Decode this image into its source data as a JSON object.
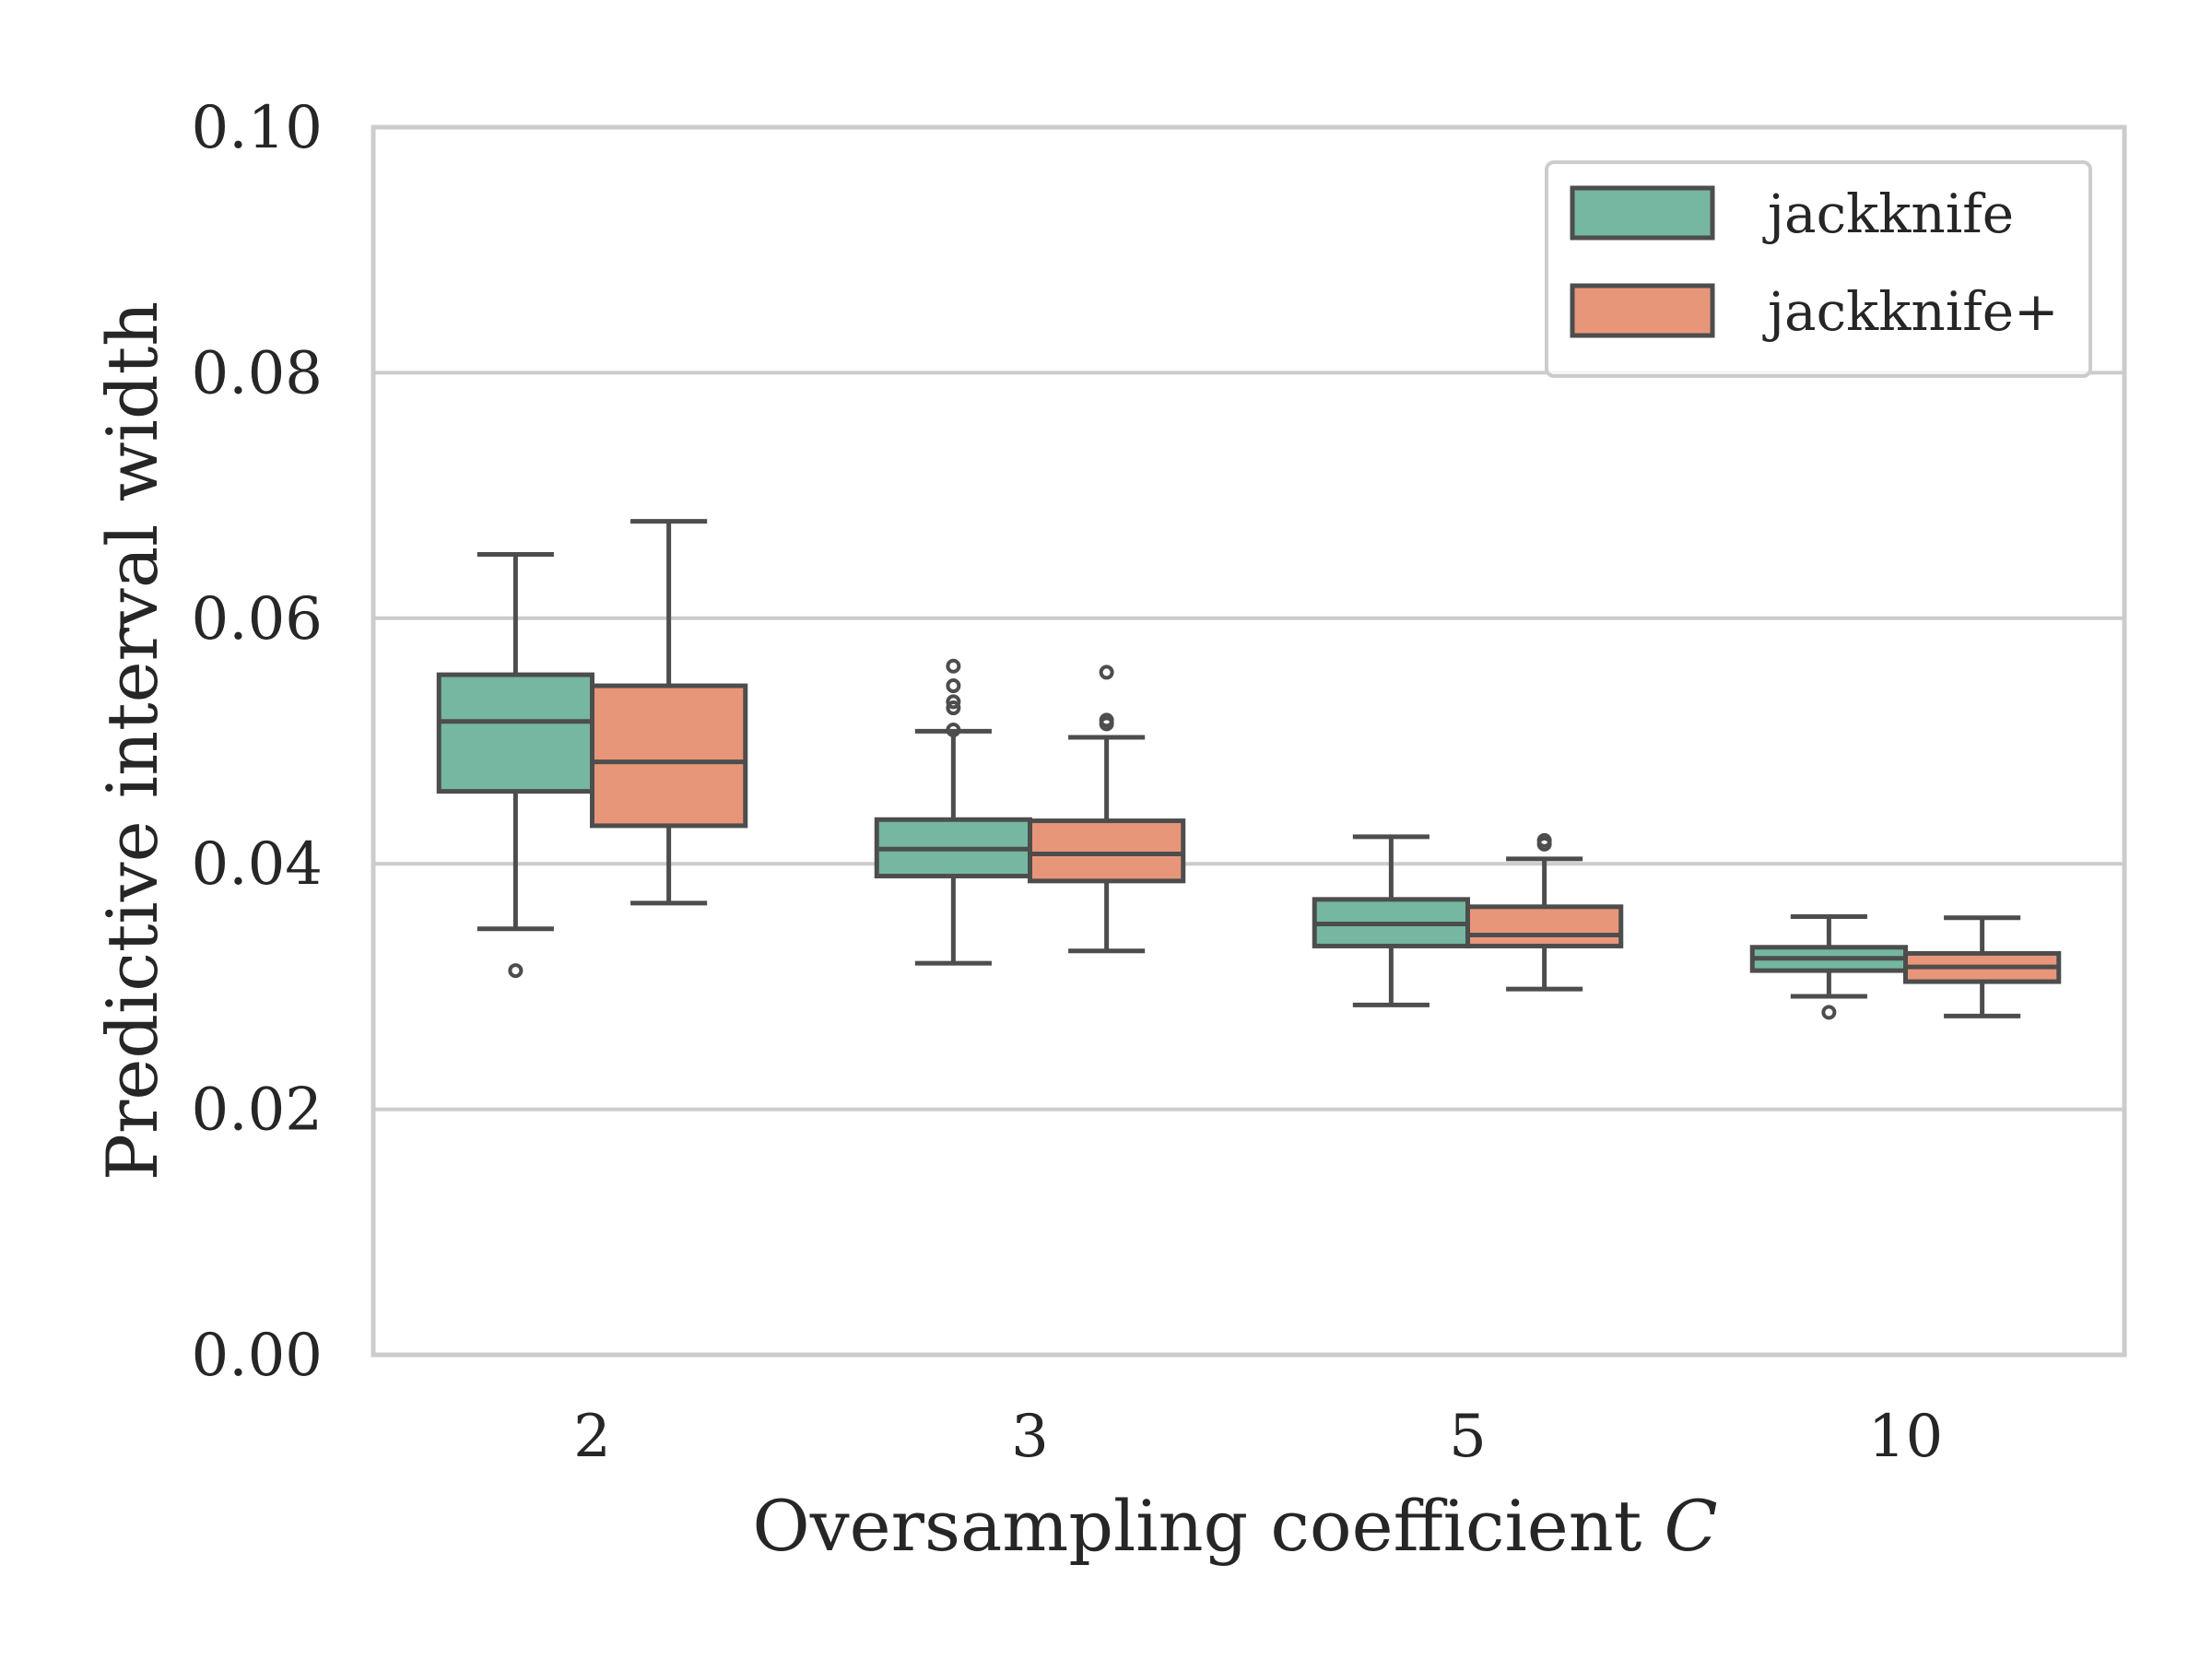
{
  "chart_data": {
    "type": "box",
    "title": "",
    "xlabel": "Oversampling coefficient",
    "xlabel_var": "C",
    "ylabel": "Predictive interval width",
    "ylim": [
      0.0,
      0.1
    ],
    "yticks": [
      "0.00",
      "0.02",
      "0.04",
      "0.06",
      "0.08",
      "0.10"
    ],
    "categories": [
      "2",
      "3",
      "5",
      "10"
    ],
    "grid": "horizontal",
    "legend_position": "top-right",
    "series": [
      {
        "name": "jackknife",
        "color": "#75b7a0",
        "boxes": [
          {
            "whisker_low": 0.0347,
            "q1": 0.0459,
            "median": 0.0516,
            "q3": 0.0554,
            "whisker_high": 0.0652,
            "outliers": [
              0.0313
            ]
          },
          {
            "whisker_low": 0.0319,
            "q1": 0.039,
            "median": 0.0412,
            "q3": 0.0436,
            "whisker_high": 0.0508,
            "outliers": [
              0.0509,
              0.0527,
              0.0532,
              0.0545,
              0.0561
            ]
          },
          {
            "whisker_low": 0.0285,
            "q1": 0.0333,
            "median": 0.0351,
            "q3": 0.0371,
            "whisker_high": 0.0422,
            "outliers": []
          },
          {
            "whisker_low": 0.0292,
            "q1": 0.0313,
            "median": 0.0323,
            "q3": 0.0332,
            "whisker_high": 0.0357,
            "outliers": [
              0.0279
            ]
          }
        ]
      },
      {
        "name": "jackknife+",
        "color": "#e8967a",
        "boxes": [
          {
            "whisker_low": 0.0368,
            "q1": 0.0431,
            "median": 0.0483,
            "q3": 0.0545,
            "whisker_high": 0.0679,
            "outliers": []
          },
          {
            "whisker_low": 0.0329,
            "q1": 0.0386,
            "median": 0.0408,
            "q3": 0.0435,
            "whisker_high": 0.0503,
            "outliers": [
              0.0514,
              0.0517,
              0.0556
            ]
          },
          {
            "whisker_low": 0.0298,
            "q1": 0.0333,
            "median": 0.0342,
            "q3": 0.0365,
            "whisker_high": 0.0404,
            "outliers": [
              0.0416,
              0.0419
            ]
          },
          {
            "whisker_low": 0.0276,
            "q1": 0.0304,
            "median": 0.0316,
            "q3": 0.0327,
            "whisker_high": 0.0356,
            "outliers": []
          }
        ]
      }
    ]
  }
}
